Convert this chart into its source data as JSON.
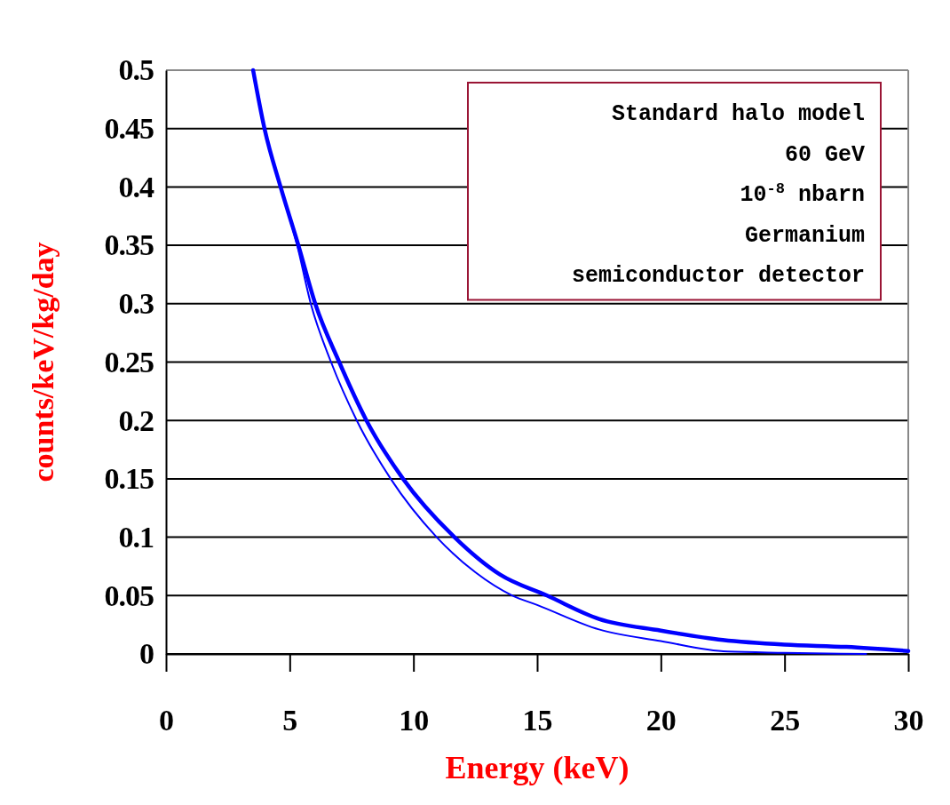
{
  "chart_data": {
    "type": "line",
    "xlabel": "Energy (keV)",
    "ylabel": "counts/keV/kg/day",
    "xlim": [
      0,
      30
    ],
    "xticks": [
      0,
      5,
      10,
      15,
      20,
      25,
      30
    ],
    "ylim": [
      0,
      0.5
    ],
    "yticks": [
      0,
      0.05,
      0.1,
      0.15,
      0.2,
      0.25,
      0.3,
      0.35,
      0.4,
      0.45,
      0.5
    ],
    "grid": "y",
    "annotations": [
      "Standard halo model",
      "60 GeV",
      "10$^{-8}$ nbarn",
      "Germanium",
      "semiconductor detector"
    ],
    "series": [
      {
        "color": "#0000ff",
        "x": [
          3.52,
          3.98,
          4.63,
          5.35,
          6.03,
          7.0,
          8.1,
          9.58,
          11.66,
          13.5,
          15.4,
          17.5,
          20,
          22.5,
          25,
          27.5,
          30
        ],
        "values": [
          0.5,
          0.45,
          0.4,
          0.35,
          0.3,
          0.25,
          0.2,
          0.15,
          0.1,
          0.068,
          0.05,
          0.03,
          0.02,
          0.012,
          0.008,
          0.006,
          0.0025
        ]
      },
      {
        "color": "#0000ff",
        "x": [
          3.52,
          3.98,
          4.63,
          5.3,
          5.85,
          6.67,
          7.71,
          9.08,
          10.94,
          12.5,
          14.0,
          15,
          17.5,
          20,
          22.7,
          25,
          28.3
        ],
        "values": [
          0.5,
          0.45,
          0.4,
          0.35,
          0.3,
          0.25,
          0.2,
          0.15,
          0.1,
          0.07,
          0.05,
          0.042,
          0.021,
          0.011,
          0.002,
          0.001,
          0.0
        ]
      }
    ]
  }
}
